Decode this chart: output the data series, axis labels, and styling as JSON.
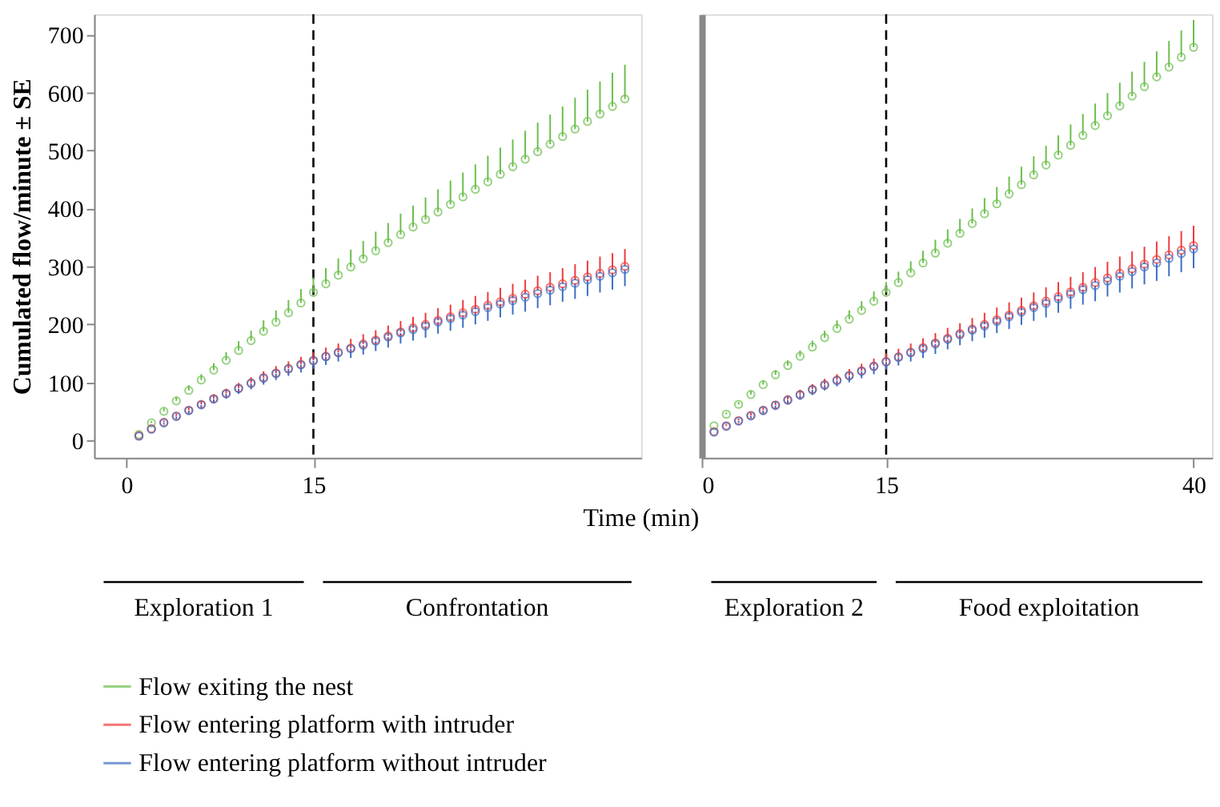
{
  "chart_data": [
    {
      "type": "scatter",
      "ylabel": "Cumulated flow/minute ± SE",
      "xlabel": "Time (min)",
      "xlim": [
        -2.6,
        41.3
      ],
      "xticks": [
        0,
        15
      ],
      "ylim": [
        -30,
        735
      ],
      "yticks": [
        0,
        100,
        200,
        300,
        400,
        500,
        600,
        700
      ],
      "marker": "circle",
      "legend": "bottom",
      "x": [
        1,
        2,
        3,
        4,
        5,
        6,
        7,
        8,
        9,
        10,
        11,
        12,
        13,
        14,
        15,
        16,
        17,
        18,
        19,
        20,
        21,
        22,
        23,
        24,
        25,
        26,
        27,
        28,
        29,
        30,
        31,
        32,
        33,
        34,
        35,
        36,
        37,
        38,
        39,
        40
      ],
      "ref_lines": [
        {
          "axis": "x",
          "value": 15,
          "line_style": "dashed"
        }
      ],
      "annotations": [
        "Exploration 1",
        "Confrontation"
      ],
      "series": [
        {
          "name": "Flow exiting the nest",
          "color": "#6abf4b",
          "values": [
            10,
            30,
            50,
            68,
            86,
            104,
            121,
            138,
            155,
            172,
            188,
            204,
            220,
            237,
            255,
            270,
            285,
            299,
            313,
            327,
            341,
            355,
            368,
            381,
            394,
            407,
            420,
            433,
            446,
            459,
            472,
            485,
            498,
            511,
            524,
            537,
            550,
            563,
            576,
            589
          ],
          "errors": [
            null,
            [
              30,
              33
            ],
            [
              50,
              55
            ],
            [
              68,
              75
            ],
            [
              86,
              95
            ],
            [
              104,
              114
            ],
            [
              121,
              133
            ],
            [
              138,
              152
            ],
            [
              155,
              171
            ],
            [
              172,
              189
            ],
            [
              188,
              207
            ],
            [
              204,
              224
            ],
            [
              220,
              242
            ],
            [
              237,
              261
            ],
            [
              255,
              281
            ],
            [
              270,
              297
            ],
            [
              285,
              314
            ],
            [
              299,
              329
            ],
            [
              313,
              344
            ],
            [
              327,
              360
            ],
            [
              341,
              375
            ],
            [
              355,
              391
            ],
            [
              368,
              405
            ],
            [
              381,
              419
            ],
            [
              394,
              433
            ],
            [
              407,
              448
            ],
            [
              420,
              462
            ],
            [
              433,
              476
            ],
            [
              446,
              491
            ],
            [
              459,
              505
            ],
            [
              472,
              519
            ],
            [
              485,
              534
            ],
            [
              498,
              548
            ],
            [
              511,
              562
            ],
            [
              524,
              576
            ],
            [
              537,
              591
            ],
            [
              550,
              605
            ],
            [
              563,
              619
            ],
            [
              576,
              634
            ],
            [
              589,
              648
            ]
          ]
        },
        {
          "name": "Flow entering platform with intruder",
          "color": "#ee3b3b",
          "values": [
            8,
            20,
            31,
            42,
            52,
            62,
            72,
            81,
            90,
            99,
            108,
            116,
            124,
            131,
            138,
            145,
            152,
            159,
            166,
            173,
            180,
            187,
            194,
            200,
            207,
            213,
            220,
            226,
            233,
            239,
            245,
            252,
            258,
            264,
            270,
            276,
            282,
            288,
            294,
            300
          ],
          "errors": [
            null,
            null,
            [
              31,
              34
            ],
            [
              42,
              46
            ],
            [
              52,
              57
            ],
            [
              62,
              68
            ],
            [
              72,
              79
            ],
            [
              81,
              89
            ],
            [
              90,
              99
            ],
            [
              99,
              109
            ],
            [
              108,
              119
            ],
            [
              116,
              128
            ],
            [
              124,
              136
            ],
            [
              131,
              144
            ],
            [
              138,
              152
            ],
            [
              145,
              160
            ],
            [
              152,
              167
            ],
            [
              159,
              175
            ],
            [
              166,
              183
            ],
            [
              173,
              190
            ],
            [
              180,
              198
            ],
            [
              187,
              206
            ],
            [
              194,
              213
            ],
            [
              200,
              220
            ],
            [
              207,
              228
            ],
            [
              213,
              234
            ],
            [
              220,
              242
            ],
            [
              226,
              249
            ],
            [
              233,
              256
            ],
            [
              239,
              263
            ],
            [
              245,
              270
            ],
            [
              252,
              277
            ],
            [
              258,
              284
            ],
            [
              264,
              290
            ],
            [
              270,
              297
            ],
            [
              276,
              304
            ],
            [
              282,
              310
            ],
            [
              288,
              317
            ],
            [
              294,
              323
            ],
            [
              300,
              330
            ]
          ]
        },
        {
          "name": "Flow entering platform without intruder",
          "color": "#3b6fc4",
          "values": [
            7,
            19,
            30,
            41,
            51,
            61,
            71,
            80,
            89,
            98,
            107,
            115,
            123,
            130,
            137,
            144,
            151,
            158,
            164,
            171,
            178,
            185,
            191,
            197,
            204,
            210,
            216,
            222,
            229,
            235,
            241,
            247,
            253,
            259,
            265,
            271,
            277,
            283,
            289,
            295
          ],
          "errors": [
            null,
            null,
            [
              27,
              30
            ],
            [
              37,
              41
            ],
            [
              46,
              51
            ],
            [
              55,
              61
            ],
            [
              64,
              71
            ],
            [
              72,
              80
            ],
            [
              80,
              89
            ],
            [
              88,
              98
            ],
            [
              96,
              107
            ],
            [
              104,
              115
            ],
            [
              111,
              123
            ],
            [
              117,
              130
            ],
            [
              123,
              137
            ],
            [
              130,
              144
            ],
            [
              136,
              151
            ],
            [
              142,
              158
            ],
            [
              148,
              164
            ],
            [
              154,
              171
            ],
            [
              160,
              178
            ],
            [
              167,
              185
            ],
            [
              172,
              191
            ],
            [
              177,
              197
            ],
            [
              184,
              204
            ],
            [
              189,
              210
            ],
            [
              194,
              216
            ],
            [
              200,
              222
            ],
            [
              206,
              229
            ],
            [
              212,
              235
            ],
            [
              217,
              241
            ],
            [
              222,
              247
            ],
            [
              228,
              253
            ],
            [
              233,
              259
            ],
            [
              239,
              265
            ],
            [
              244,
              271
            ],
            [
              249,
              277
            ],
            [
              255,
              283
            ],
            [
              260,
              289
            ],
            [
              266,
              295
            ]
          ]
        }
      ]
    },
    {
      "type": "scatter",
      "xlim": [
        0,
        41.5
      ],
      "xticks": [
        0,
        15,
        40
      ],
      "ylim": [
        -30,
        735
      ],
      "yticks": [
        0,
        100,
        200,
        300,
        400,
        500,
        600,
        700
      ],
      "marker": "circle",
      "tick_labels": "x",
      "x": [
        1,
        2,
        3,
        4,
        5,
        6,
        7,
        8,
        9,
        10,
        11,
        12,
        13,
        14,
        15,
        16,
        17,
        18,
        19,
        20,
        21,
        22,
        23,
        24,
        25,
        26,
        27,
        28,
        29,
        30,
        31,
        32,
        33,
        34,
        35,
        36,
        37,
        38,
        39,
        40
      ],
      "ref_lines": [
        {
          "axis": "x",
          "value": 15,
          "line_style": "dashed"
        }
      ],
      "annotations": [
        "Exploration 2",
        "Food exploitation"
      ],
      "series": [
        {
          "color": "#6abf4b",
          "values": [
            25,
            45,
            62,
            79,
            96,
            113,
            129,
            145,
            161,
            177,
            193,
            209,
            224,
            240,
            255,
            272,
            289,
            306,
            323,
            340,
            357,
            374,
            391,
            408,
            425,
            441,
            458,
            475,
            492,
            509,
            526,
            543,
            560,
            577,
            594,
            610,
            627,
            644,
            661,
            678
          ],
          "errors": [
            null,
            [
              45,
              48
            ],
            [
              62,
              66
            ],
            [
              79,
              85
            ],
            [
              96,
              103
            ],
            [
              113,
              121
            ],
            [
              129,
              138
            ],
            [
              145,
              155
            ],
            [
              161,
              172
            ],
            [
              177,
              189
            ],
            [
              193,
              207
            ],
            [
              209,
              224
            ],
            [
              224,
              240
            ],
            [
              240,
              257
            ],
            [
              255,
              273
            ],
            [
              272,
              291
            ],
            [
              289,
              309
            ],
            [
              306,
              327
            ],
            [
              323,
              346
            ],
            [
              340,
              364
            ],
            [
              357,
              382
            ],
            [
              374,
              400
            ],
            [
              391,
              418
            ],
            [
              408,
              437
            ],
            [
              425,
              455
            ],
            [
              441,
              472
            ],
            [
              458,
              490
            ],
            [
              475,
              508
            ],
            [
              492,
              526
            ],
            [
              509,
              545
            ],
            [
              526,
              563
            ],
            [
              543,
              581
            ],
            [
              560,
              599
            ],
            [
              577,
              617
            ],
            [
              594,
              636
            ],
            [
              610,
              653
            ],
            [
              627,
              671
            ],
            [
              644,
              689
            ],
            [
              661,
              707
            ],
            [
              678,
              725
            ]
          ]
        },
        {
          "color": "#ee3b3b",
          "values": [
            15,
            25,
            34,
            43,
            52,
            61,
            70,
            79,
            88,
            96,
            104,
            112,
            120,
            128,
            136,
            144,
            152,
            160,
            168,
            176,
            184,
            192,
            200,
            208,
            216,
            224,
            232,
            240,
            248,
            256,
            264,
            272,
            280,
            288,
            296,
            304,
            312,
            320,
            328,
            336
          ],
          "errors": [
            null,
            [
              25,
              28
            ],
            [
              34,
              37
            ],
            [
              43,
              47
            ],
            [
              52,
              57
            ],
            [
              61,
              67
            ],
            [
              70,
              77
            ],
            [
              79,
              87
            ],
            [
              88,
              97
            ],
            [
              96,
              106
            ],
            [
              104,
              114
            ],
            [
              112,
              123
            ],
            [
              120,
              132
            ],
            [
              128,
              141
            ],
            [
              136,
              150
            ],
            [
              144,
              158
            ],
            [
              152,
              167
            ],
            [
              160,
              176
            ],
            [
              168,
              185
            ],
            [
              176,
              194
            ],
            [
              184,
              202
            ],
            [
              192,
              211
            ],
            [
              200,
              220
            ],
            [
              208,
              229
            ],
            [
              216,
              238
            ],
            [
              224,
              246
            ],
            [
              232,
              255
            ],
            [
              240,
              264
            ],
            [
              248,
              273
            ],
            [
              256,
              282
            ],
            [
              264,
              290
            ],
            [
              272,
              299
            ],
            [
              280,
              308
            ],
            [
              288,
              317
            ],
            [
              296,
              326
            ],
            [
              304,
              334
            ],
            [
              312,
              343
            ],
            [
              320,
              352
            ],
            [
              328,
              361
            ],
            [
              336,
              370
            ]
          ]
        },
        {
          "color": "#3b6fc4",
          "values": [
            14,
            24,
            33,
            42,
            51,
            60,
            69,
            78,
            87,
            95,
            103,
            111,
            119,
            127,
            135,
            143,
            151,
            158,
            166,
            174,
            182,
            190,
            197,
            205,
            213,
            221,
            229,
            236,
            244,
            252,
            260,
            267,
            275,
            283,
            291,
            299,
            306,
            314,
            322,
            330
          ],
          "errors": [
            null,
            null,
            [
              30,
              33
            ],
            [
              38,
              42
            ],
            [
              46,
              51
            ],
            [
              54,
              60
            ],
            [
              62,
              69
            ],
            [
              70,
              78
            ],
            [
              78,
              87
            ],
            [
              86,
              95
            ],
            [
              93,
              103
            ],
            [
              100,
              111
            ],
            [
              107,
              119
            ],
            [
              114,
              127
            ],
            [
              122,
              135
            ],
            [
              129,
              143
            ],
            [
              136,
              151
            ],
            [
              142,
              158
            ],
            [
              149,
              166
            ],
            [
              157,
              174
            ],
            [
              164,
              182
            ],
            [
              171,
              190
            ],
            [
              177,
              197
            ],
            [
              185,
              205
            ],
            [
              192,
              213
            ],
            [
              199,
              221
            ],
            [
              206,
              229
            ],
            [
              212,
              236
            ],
            [
              220,
              244
            ],
            [
              227,
              252
            ],
            [
              234,
              260
            ],
            [
              240,
              267
            ],
            [
              248,
              275
            ],
            [
              255,
              283
            ],
            [
              262,
              291
            ],
            [
              269,
              299
            ],
            [
              275,
              306
            ],
            [
              283,
              314
            ],
            [
              290,
              322
            ],
            [
              297,
              330
            ]
          ]
        }
      ]
    }
  ]
}
